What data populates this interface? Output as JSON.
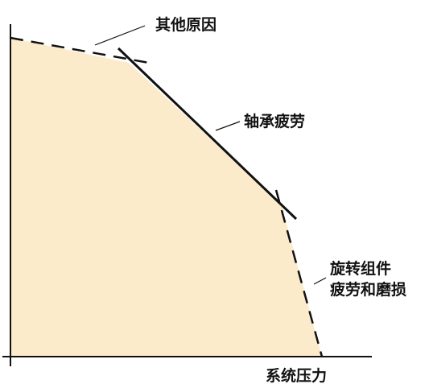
{
  "diagram": {
    "x_axis_label": "系统压力",
    "segments": {
      "other_causes": "其他原因",
      "bearing_fatigue": "轴承疲劳",
      "rotating_parts_line1": "旋转组件",
      "rotating_parts_line2": "疲劳和磨损"
    }
  },
  "colors": {
    "fill": "#fcebcb",
    "line": "#111111",
    "axis": "#111111"
  }
}
